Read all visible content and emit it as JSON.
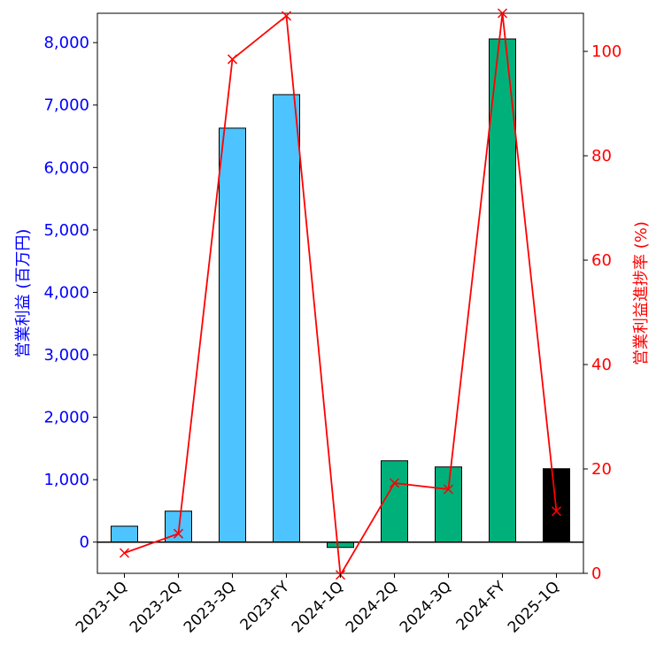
{
  "chart_data": {
    "type": "bar+line",
    "categories": [
      "2023-1Q",
      "2023-2Q",
      "2023-3Q",
      "2023-FY",
      "2024-1Q",
      "2024-2Q",
      "2024-3Q",
      "2024-FY",
      "2025-1Q"
    ],
    "bar_series": {
      "name": "営業利益 (百万円)",
      "values": [
        255,
        496,
        6630,
        7167,
        -85,
        1303,
        1204,
        8059,
        1176
      ],
      "colors": [
        "#4dc3ff",
        "#4dc3ff",
        "#4dc3ff",
        "#4dc3ff",
        "#00b07a",
        "#00b07a",
        "#00b07a",
        "#00b07a",
        "#000000"
      ]
    },
    "line_series": {
      "name": "営業利益進捗率 (%)",
      "values": [
        3.9,
        7.6,
        98.5,
        106.8,
        -0.3,
        17.3,
        16.1,
        107.3,
        11.9
      ],
      "color": "#ff0000"
    },
    "ylabel": "営業利益 (百万円)",
    "y2label": "営業利益進捗率 (%)",
    "ylim": [
      -500,
      8470
    ],
    "y2lim": [
      0,
      107.3
    ],
    "yticks": [
      0,
      1000,
      2000,
      3000,
      4000,
      5000,
      6000,
      7000,
      8000
    ],
    "ytick_labels": [
      "0",
      "1,000",
      "2,000",
      "3,000",
      "4,000",
      "5,000",
      "6,000",
      "7,000",
      "8,000"
    ],
    "y2ticks": [
      0,
      20,
      40,
      60,
      80,
      100
    ],
    "y2tick_labels": [
      "0",
      "20",
      "40",
      "60",
      "80",
      "100"
    ],
    "left_axis_color": "#0000ff",
    "right_axis_color": "#ff0000"
  }
}
